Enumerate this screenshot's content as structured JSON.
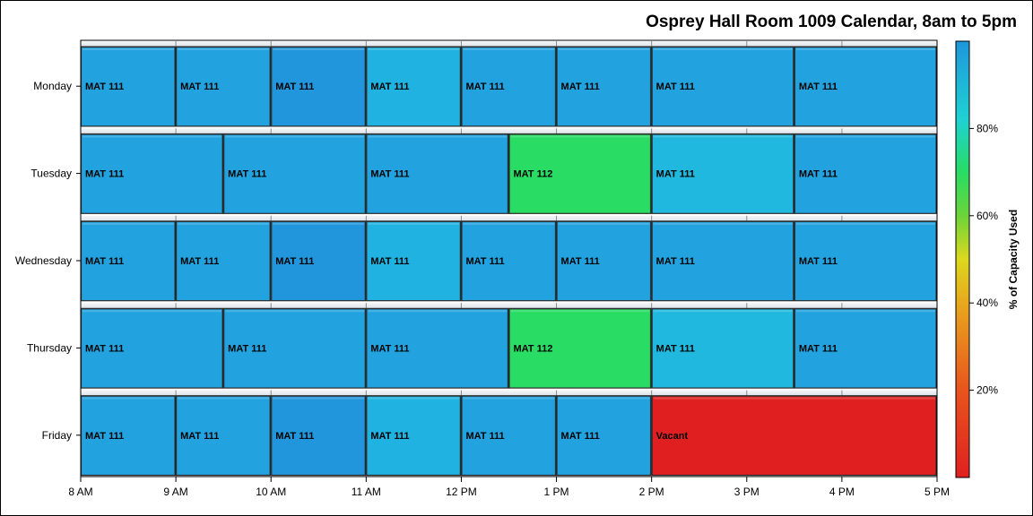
{
  "chart_data": {
    "type": "gantt-heatmap",
    "title": "Osprey Hall Room 1009 Calendar, 8am to 5pm",
    "x_ticks": [
      {
        "hour": 8,
        "label": "8 AM"
      },
      {
        "hour": 9,
        "label": "9 AM"
      },
      {
        "hour": 10,
        "label": "10 AM"
      },
      {
        "hour": 11,
        "label": "11 AM"
      },
      {
        "hour": 12,
        "label": "12 PM"
      },
      {
        "hour": 13,
        "label": "1 PM"
      },
      {
        "hour": 14,
        "label": "2 PM"
      },
      {
        "hour": 15,
        "label": "3 PM"
      },
      {
        "hour": 16,
        "label": "4 PM"
      },
      {
        "hour": 17,
        "label": "5 PM"
      }
    ],
    "xlim": [
      8,
      17
    ],
    "colorbar": {
      "label": "% of Capacity Used",
      "range": [
        0,
        100
      ],
      "ticks": [
        {
          "value": 20,
          "label": "20%"
        },
        {
          "value": 40,
          "label": "40%"
        },
        {
          "value": 60,
          "label": "60%"
        },
        {
          "value": 80,
          "label": "80%"
        }
      ],
      "stops": [
        {
          "offset": 0,
          "color": "#e02020"
        },
        {
          "offset": 0.2,
          "color": "#e8541e"
        },
        {
          "offset": 0.4,
          "color": "#e8a81e"
        },
        {
          "offset": 0.5,
          "color": "#dcd81e"
        },
        {
          "offset": 0.6,
          "color": "#6cd43a"
        },
        {
          "offset": 0.7,
          "color": "#28dc64"
        },
        {
          "offset": 0.82,
          "color": "#1ed2d2"
        },
        {
          "offset": 1,
          "color": "#1e96dc"
        }
      ]
    },
    "days": [
      {
        "name": "Monday",
        "events": [
          {
            "start": 8,
            "end": 9,
            "label": "MAT 111",
            "color": "#22a3e0"
          },
          {
            "start": 9,
            "end": 10,
            "label": "MAT 111",
            "color": "#22a3e0"
          },
          {
            "start": 10,
            "end": 11,
            "label": "MAT 111",
            "color": "#2296dc"
          },
          {
            "start": 11,
            "end": 12,
            "label": "MAT 111",
            "color": "#20b2e0"
          },
          {
            "start": 12,
            "end": 13,
            "label": "MAT 111",
            "color": "#22a3e0"
          },
          {
            "start": 13,
            "end": 14,
            "label": "MAT 111",
            "color": "#22a3e0"
          },
          {
            "start": 14,
            "end": 15.5,
            "label": "MAT 111",
            "color": "#22a3e0"
          },
          {
            "start": 15.5,
            "end": 17,
            "label": "MAT 111",
            "color": "#22a3e0"
          }
        ]
      },
      {
        "name": "Tuesday",
        "events": [
          {
            "start": 8,
            "end": 9.5,
            "label": "MAT 111",
            "color": "#22a3e0"
          },
          {
            "start": 9.5,
            "end": 11,
            "label": "MAT 111",
            "color": "#22a3e0"
          },
          {
            "start": 11,
            "end": 12.5,
            "label": "MAT 111",
            "color": "#22a3e0"
          },
          {
            "start": 12.5,
            "end": 14,
            "label": "MAT 112",
            "color": "#28dc64"
          },
          {
            "start": 14,
            "end": 15.5,
            "label": "MAT 111",
            "color": "#20b8de"
          },
          {
            "start": 15.5,
            "end": 17,
            "label": "MAT 111",
            "color": "#22a3e0"
          }
        ]
      },
      {
        "name": "Wednesday",
        "events": [
          {
            "start": 8,
            "end": 9,
            "label": "MAT 111",
            "color": "#22a3e0"
          },
          {
            "start": 9,
            "end": 10,
            "label": "MAT 111",
            "color": "#22a3e0"
          },
          {
            "start": 10,
            "end": 11,
            "label": "MAT 111",
            "color": "#2296dc"
          },
          {
            "start": 11,
            "end": 12,
            "label": "MAT 111",
            "color": "#20b2e0"
          },
          {
            "start": 12,
            "end": 13,
            "label": "MAT 111",
            "color": "#22a3e0"
          },
          {
            "start": 13,
            "end": 14,
            "label": "MAT 111",
            "color": "#22a3e0"
          },
          {
            "start": 14,
            "end": 15.5,
            "label": "MAT 111",
            "color": "#22a3e0"
          },
          {
            "start": 15.5,
            "end": 17,
            "label": "MAT 111",
            "color": "#22a3e0"
          }
        ]
      },
      {
        "name": "Thursday",
        "events": [
          {
            "start": 8,
            "end": 9.5,
            "label": "MAT 111",
            "color": "#22a3e0"
          },
          {
            "start": 9.5,
            "end": 11,
            "label": "MAT 111",
            "color": "#22a3e0"
          },
          {
            "start": 11,
            "end": 12.5,
            "label": "MAT 111",
            "color": "#22a3e0"
          },
          {
            "start": 12.5,
            "end": 14,
            "label": "MAT 112",
            "color": "#28dc64"
          },
          {
            "start": 14,
            "end": 15.5,
            "label": "MAT 111",
            "color": "#20b8de"
          },
          {
            "start": 15.5,
            "end": 17,
            "label": "MAT 111",
            "color": "#22a3e0"
          }
        ]
      },
      {
        "name": "Friday",
        "events": [
          {
            "start": 8,
            "end": 9,
            "label": "MAT 111",
            "color": "#22a3e0"
          },
          {
            "start": 9,
            "end": 10,
            "label": "MAT 111",
            "color": "#22a3e0"
          },
          {
            "start": 10,
            "end": 11,
            "label": "MAT 111",
            "color": "#2296dc"
          },
          {
            "start": 11,
            "end": 12,
            "label": "MAT 111",
            "color": "#20b2e0"
          },
          {
            "start": 12,
            "end": 13,
            "label": "MAT 111",
            "color": "#22a3e0"
          },
          {
            "start": 13,
            "end": 14,
            "label": "MAT 111",
            "color": "#22a3e0"
          },
          {
            "start": 14,
            "end": 17,
            "label": "Vacant",
            "color": "#e02020",
            "vacant": true
          }
        ]
      }
    ]
  }
}
